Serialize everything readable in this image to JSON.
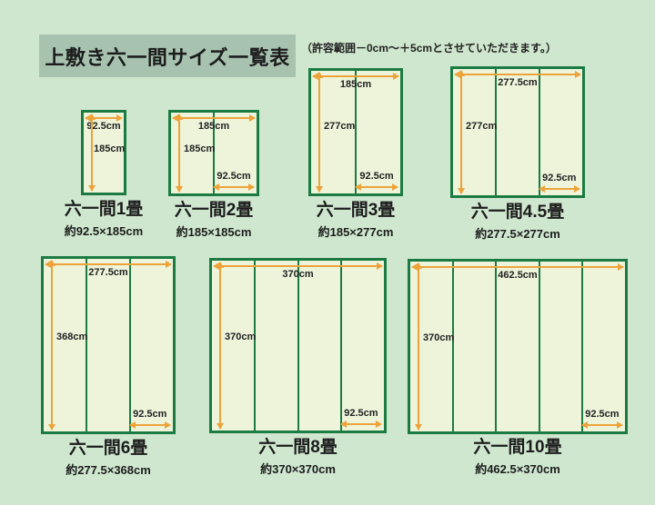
{
  "header": {
    "title": "上敷き六一間サイズ一覧表",
    "note": "（許容範囲－0cm～＋5cmとさせていただきます。）"
  },
  "colors": {
    "background": "#cfe7cf",
    "title_background": "#a7c3b0",
    "border_green": "#1b7b42",
    "mat_fill": "#edf4da",
    "arrow_orange": "#eda33a"
  },
  "diagrams": [
    {
      "name": "六一間1畳",
      "size": "約92.5×185cm",
      "width_label": "92.5cm",
      "height_label": "185cm",
      "mat_width_label": "",
      "columns": 1
    },
    {
      "name": "六一間2畳",
      "size": "約185×185cm",
      "width_label": "185cm",
      "height_label": "185cm",
      "mat_width_label": "92.5cm",
      "columns": 2
    },
    {
      "name": "六一間3畳",
      "size": "約185×277cm",
      "width_label": "185cm",
      "height_label": "277cm",
      "mat_width_label": "92.5cm",
      "columns": 2
    },
    {
      "name": "六一間4.5畳",
      "size": "約277.5×277cm",
      "width_label": "277.5cm",
      "height_label": "277cm",
      "mat_width_label": "92.5cm",
      "columns": 3
    },
    {
      "name": "六一間6畳",
      "size": "約277.5×368cm",
      "width_label": "277.5cm",
      "height_label": "368cm",
      "mat_width_label": "92.5cm",
      "columns": 3
    },
    {
      "name": "六一間8畳",
      "size": "約370×370cm",
      "width_label": "370cm",
      "height_label": "370cm",
      "mat_width_label": "92.5cm",
      "columns": 4
    },
    {
      "name": "六一間10畳",
      "size": "約462.5×370cm",
      "width_label": "462.5cm",
      "height_label": "370cm",
      "mat_width_label": "92.5cm",
      "columns": 5
    }
  ]
}
